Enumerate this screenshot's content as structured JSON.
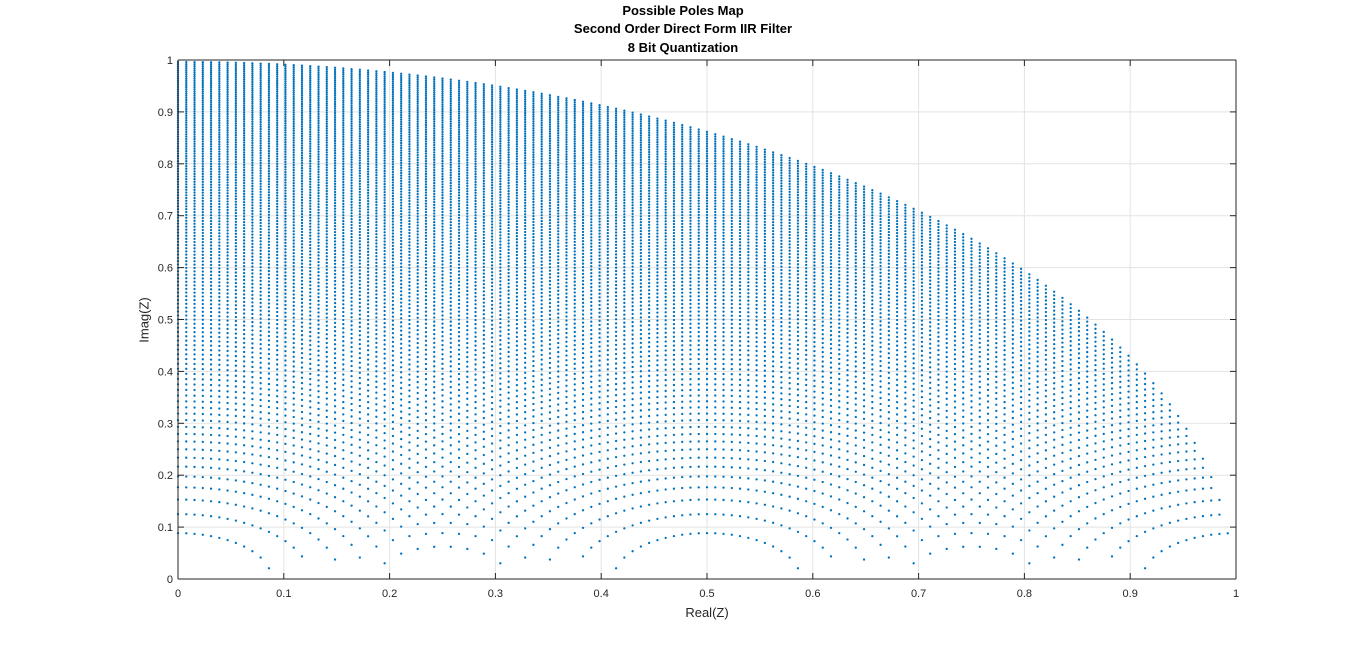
{
  "chart_data": {
    "type": "scatter",
    "title": [
      "Possible Poles Map",
      "Second Order Direct Form IIR Filter",
      "8 Bit Quantization"
    ],
    "xlabel": "Real(Z)",
    "ylabel": "Imag(Z)",
    "xlim": [
      0,
      1
    ],
    "ylim": [
      0,
      1
    ],
    "xticks": [
      0,
      0.1,
      0.2,
      0.3,
      0.4,
      0.5,
      0.6,
      0.7,
      0.8,
      0.9,
      1
    ],
    "yticks": [
      0,
      0.1,
      0.2,
      0.3,
      0.4,
      0.5,
      0.6,
      0.7,
      0.8,
      0.9,
      1
    ],
    "grid": true,
    "marker_color": "#0072BD",
    "generation": {
      "coefficient_bits": 8,
      "radius_squared_step": 0.0078125,
      "twice_real_step": 0.015625,
      "radius_max": 1
    },
    "series": [
      {
        "points": "computed from generation: poles z = a/2 ± j·sqrt(b − a²/4) for quantized a, b"
      }
    ]
  }
}
